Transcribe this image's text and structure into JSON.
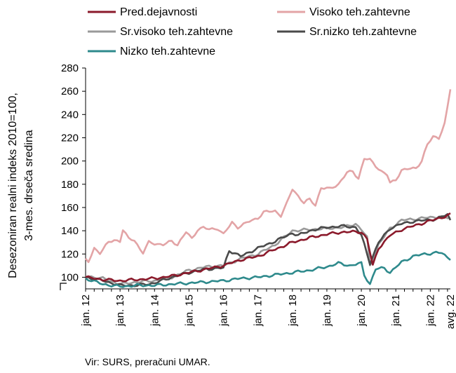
{
  "chart_data": {
    "type": "line",
    "ylabel_lines": [
      "Desezoniran realni indeks 2010=100,",
      "3-mes. drseča sredina"
    ],
    "ylim": [
      90,
      280
    ],
    "yticks": [
      100,
      120,
      140,
      160,
      180,
      200,
      220,
      240,
      260,
      280
    ],
    "x_tick_labels": [
      "jan. 12",
      "jan. 13",
      "jan. 14",
      "jan. 15",
      "jan. 16",
      "jan. 17",
      "jan. 18",
      "jan. 19",
      "jan. 20",
      "jan. 21",
      "jan. 22",
      "avg. 22"
    ],
    "x_tick_positions": [
      0,
      12,
      24,
      36,
      48,
      60,
      72,
      84,
      96,
      108,
      120,
      127
    ],
    "legend_placement": "top",
    "grid": false,
    "source_note": "Vir: SURS, preračuni UMAR.",
    "series": [
      {
        "name": "Pred.dejavnosti",
        "color": "#8b1a2b",
        "anchors": [
          [
            0,
            100
          ],
          [
            6,
            98
          ],
          [
            12,
            97
          ],
          [
            24,
            99
          ],
          [
            30,
            101
          ],
          [
            36,
            104
          ],
          [
            48,
            110
          ],
          [
            54,
            115
          ],
          [
            60,
            118
          ],
          [
            66,
            124
          ],
          [
            72,
            130
          ],
          [
            78,
            134
          ],
          [
            84,
            137
          ],
          [
            90,
            139
          ],
          [
            93,
            139
          ],
          [
            96,
            139
          ],
          [
            98,
            133
          ],
          [
            100,
            110
          ],
          [
            102,
            125
          ],
          [
            106,
            136
          ],
          [
            110,
            141
          ],
          [
            114,
            144
          ],
          [
            118,
            147
          ],
          [
            122,
            150
          ],
          [
            126,
            153
          ],
          [
            127,
            154
          ]
        ]
      },
      {
        "name": "Visoko teh.zahtevne",
        "color": "#e3a4a6",
        "anchors": [
          [
            0,
            115
          ],
          [
            1,
            113
          ],
          [
            3,
            125
          ],
          [
            5,
            121
          ],
          [
            8,
            130
          ],
          [
            10,
            132
          ],
          [
            12,
            131
          ],
          [
            13,
            141
          ],
          [
            15,
            133
          ],
          [
            17,
            132
          ],
          [
            19,
            124
          ],
          [
            20,
            121
          ],
          [
            22,
            130
          ],
          [
            24,
            129
          ],
          [
            27,
            128
          ],
          [
            30,
            131
          ],
          [
            32,
            128
          ],
          [
            35,
            139
          ],
          [
            37,
            133
          ],
          [
            39,
            141
          ],
          [
            41,
            143
          ],
          [
            43,
            141
          ],
          [
            46,
            142
          ],
          [
            48,
            137
          ],
          [
            51,
            147
          ],
          [
            53,
            143
          ],
          [
            57,
            148
          ],
          [
            60,
            151
          ],
          [
            62,
            156
          ],
          [
            66,
            157
          ],
          [
            68,
            153
          ],
          [
            70,
            163
          ],
          [
            72,
            176
          ],
          [
            74,
            170
          ],
          [
            76,
            164
          ],
          [
            78,
            167
          ],
          [
            80,
            162
          ],
          [
            82,
            177
          ],
          [
            85,
            176
          ],
          [
            88,
            180
          ],
          [
            91,
            190
          ],
          [
            93,
            191
          ],
          [
            95,
            185
          ],
          [
            97,
            202
          ],
          [
            99,
            201
          ],
          [
            101,
            196
          ],
          [
            103,
            191
          ],
          [
            105,
            188
          ],
          [
            106,
            181
          ],
          [
            108,
            184
          ],
          [
            110,
            192
          ],
          [
            112,
            193
          ],
          [
            115,
            194
          ],
          [
            117,
            200
          ],
          [
            119,
            214
          ],
          [
            121,
            221
          ],
          [
            123,
            220
          ],
          [
            125,
            232
          ],
          [
            126,
            246
          ],
          [
            127,
            262
          ]
        ]
      },
      {
        "name": "Sr.visoko teh.zahtevne",
        "color": "#9a9a9a",
        "anchors": [
          [
            0,
            101
          ],
          [
            6,
            99
          ],
          [
            12,
            94
          ],
          [
            18,
            96
          ],
          [
            24,
            97
          ],
          [
            30,
            100
          ],
          [
            36,
            106
          ],
          [
            42,
            109
          ],
          [
            48,
            110
          ],
          [
            54,
            116
          ],
          [
            60,
            120
          ],
          [
            66,
            128
          ],
          [
            72,
            140
          ],
          [
            78,
            141
          ],
          [
            84,
            142
          ],
          [
            90,
            143
          ],
          [
            94,
            146
          ],
          [
            96,
            141
          ],
          [
            98,
            134
          ],
          [
            99,
            110
          ],
          [
            102,
            128
          ],
          [
            106,
            142
          ],
          [
            110,
            149
          ],
          [
            114,
            150
          ],
          [
            118,
            151
          ],
          [
            122,
            152
          ],
          [
            127,
            151
          ]
        ]
      },
      {
        "name": "Sr.nizko teh.zahtevne",
        "color": "#4a4a4a",
        "anchors": [
          [
            0,
            100
          ],
          [
            6,
            97
          ],
          [
            12,
            93
          ],
          [
            18,
            93
          ],
          [
            24,
            95
          ],
          [
            30,
            100
          ],
          [
            36,
            104
          ],
          [
            42,
            107
          ],
          [
            48,
            108
          ],
          [
            50,
            123
          ],
          [
            54,
            118
          ],
          [
            60,
            125
          ],
          [
            66,
            131
          ],
          [
            72,
            138
          ],
          [
            74,
            136
          ],
          [
            78,
            140
          ],
          [
            84,
            143
          ],
          [
            90,
            144
          ],
          [
            94,
            143
          ],
          [
            96,
            136
          ],
          [
            99,
            112
          ],
          [
            102,
            130
          ],
          [
            106,
            142
          ],
          [
            110,
            146
          ],
          [
            114,
            148
          ],
          [
            118,
            149
          ],
          [
            122,
            150
          ],
          [
            126,
            154
          ],
          [
            127,
            149
          ]
        ]
      },
      {
        "name": "Nizko teh.zahtevne",
        "color": "#2e8a8c",
        "anchors": [
          [
            0,
            99
          ],
          [
            6,
            94
          ],
          [
            12,
            92
          ],
          [
            18,
            93
          ],
          [
            24,
            93
          ],
          [
            30,
            94
          ],
          [
            36,
            95
          ],
          [
            42,
            96
          ],
          [
            48,
            97
          ],
          [
            54,
            99
          ],
          [
            60,
            100
          ],
          [
            66,
            102
          ],
          [
            72,
            104
          ],
          [
            78,
            106
          ],
          [
            84,
            109
          ],
          [
            88,
            112
          ],
          [
            92,
            110
          ],
          [
            96,
            112
          ],
          [
            97,
            102
          ],
          [
            99,
            94
          ],
          [
            101,
            107
          ],
          [
            104,
            108
          ],
          [
            106,
            104
          ],
          [
            110,
            113
          ],
          [
            114,
            118
          ],
          [
            118,
            120
          ],
          [
            122,
            121
          ],
          [
            124,
            121
          ],
          [
            126,
            117
          ],
          [
            127,
            116
          ]
        ]
      }
    ]
  }
}
